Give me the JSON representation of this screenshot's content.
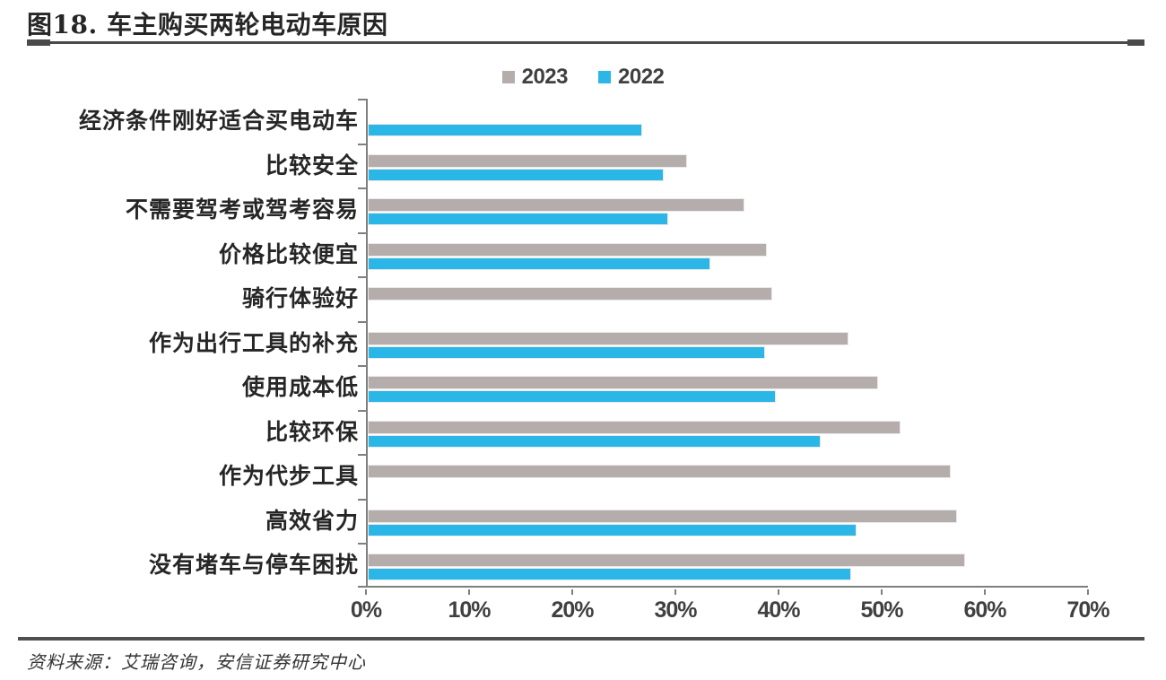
{
  "header": {
    "title": "图18. 车主购买两轮电动车原因"
  },
  "chart_data": {
    "type": "bar",
    "orientation": "horizontal",
    "title": "图18. 车主购买两轮电动车原因",
    "categories": [
      "经济条件刚好适合买电动车",
      "比较安全",
      "不需要驾考或驾考容易",
      "价格比较便宜",
      "骑行体验好",
      "作为出行工具的补充",
      "使用成本低",
      "比较环保",
      "作为代步工具",
      "高效省力",
      "没有堵车与停车困扰"
    ],
    "series": [
      {
        "name": "2023",
        "color": "#b5acac",
        "values": [
          null,
          31.0,
          36.6,
          38.8,
          39.3,
          46.7,
          49.6,
          51.8,
          56.7,
          57.3,
          58.1
        ]
      },
      {
        "name": "2022",
        "color": "#2bb6e8",
        "values": [
          26.7,
          28.8,
          29.2,
          33.3,
          null,
          38.6,
          39.7,
          44.0,
          null,
          47.5,
          47.0
        ]
      }
    ],
    "xlabel": "",
    "ylabel": "",
    "xlim": [
      0,
      70
    ],
    "x_ticks": [
      "0%",
      "10%",
      "20%",
      "30%",
      "40%",
      "50%",
      "60%",
      "70%"
    ],
    "unit": "percent",
    "legend_position": "top",
    "grid": false,
    "axis_color": "#7f7f7f",
    "tick_label_color": "#404040"
  },
  "footer": {
    "source": "资料来源：艾瑞咨询，安信证券研究中心"
  }
}
